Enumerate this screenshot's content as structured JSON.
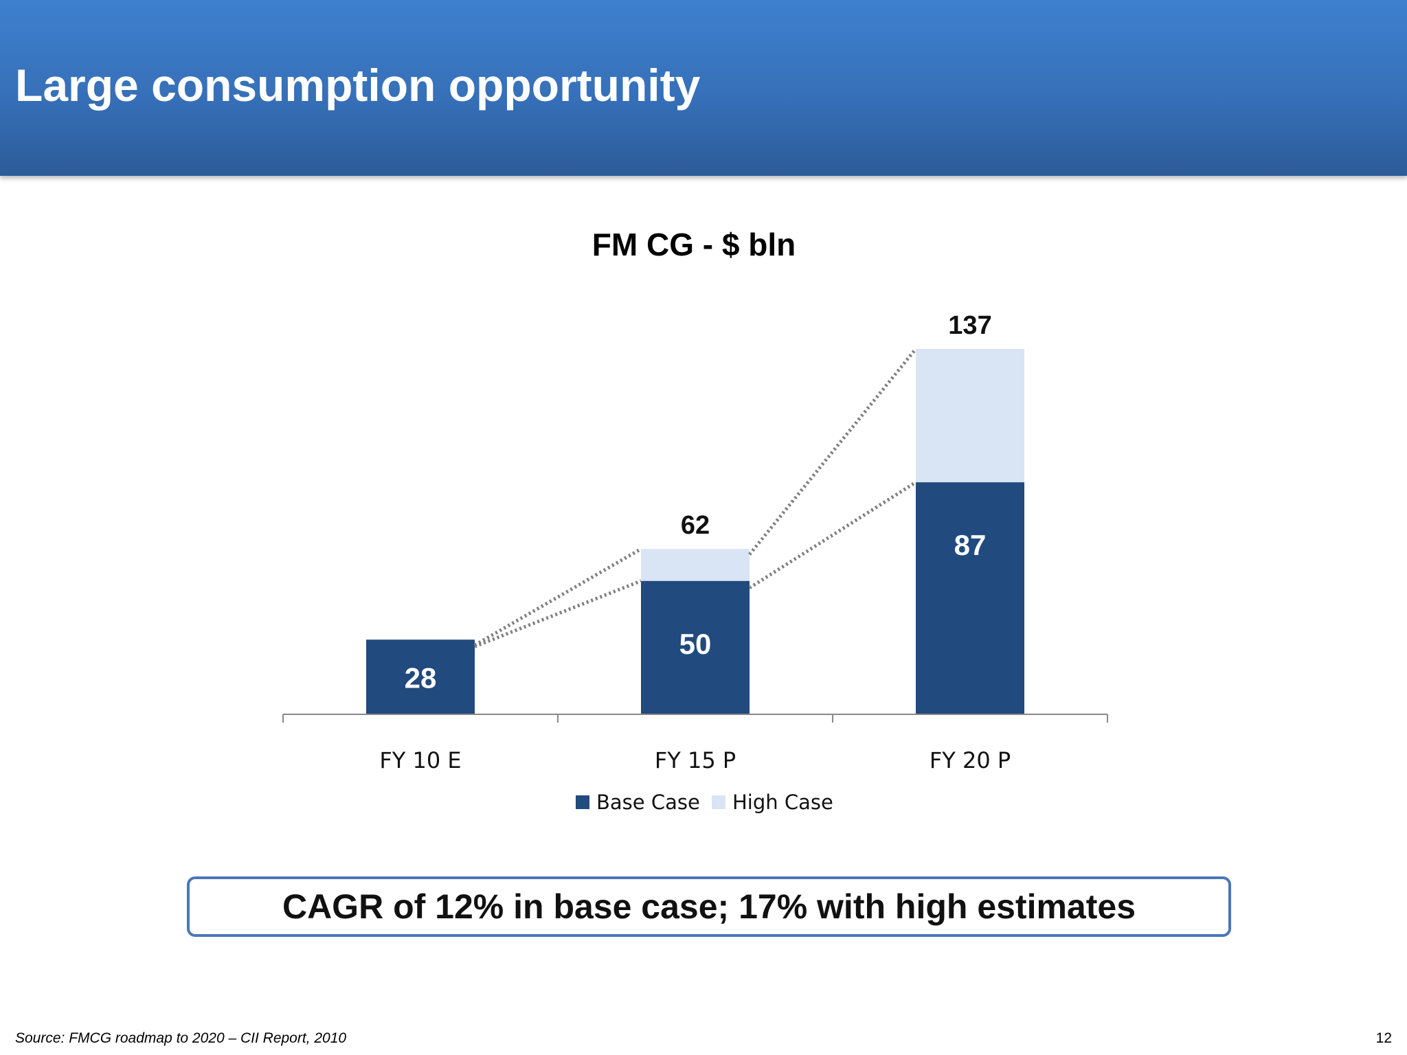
{
  "slide": {
    "title": "Large consumption opportunity",
    "callout": "CAGR of 12% in base case; 17% with high estimates",
    "source": "Source: FMCG roadmap to 2020 – CII Report, 2010",
    "page_number": "12"
  },
  "colors": {
    "header": "#3670b8",
    "base_case": "#214a7e",
    "high_case": "#d9e5f4",
    "connector": "#808080"
  },
  "chart_data": {
    "type": "bar",
    "stacked": true,
    "title": "FM CG - $ bln",
    "categories": [
      "FY 10 E",
      "FY 15 P",
      "FY 20 P"
    ],
    "series": [
      {
        "name": "Base Case",
        "values": [
          28,
          50,
          87
        ]
      },
      {
        "name": "High Case",
        "values": [
          0,
          12,
          50
        ]
      }
    ],
    "segment_labels": {
      "Base Case": [
        "28",
        "50",
        "87"
      ]
    },
    "total_labels": [
      "",
      "62",
      "137"
    ],
    "ylim": [
      0,
      137
    ],
    "legend_position": "bottom",
    "grid": false,
    "connectors": "dotted lines joining bar tops of consecutive bars"
  }
}
